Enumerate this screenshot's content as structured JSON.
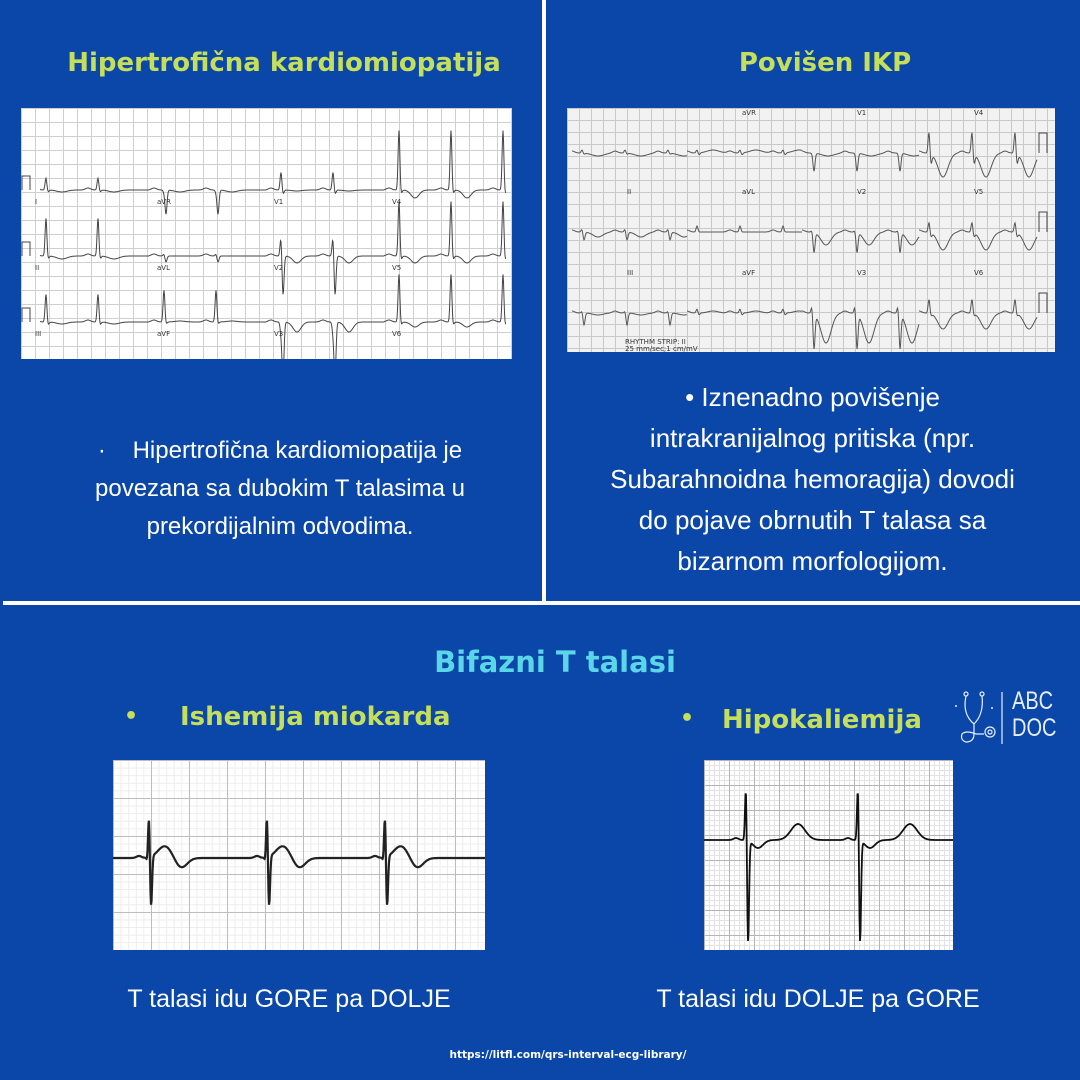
{
  "top_left": {
    "title": "Hipertrofična kardiomiopatija",
    "ecg_leads": [
      "I",
      "aVR",
      "V1",
      "V4",
      "II",
      "aVL",
      "V2",
      "V5",
      "III",
      "aVF",
      "V3",
      "V6"
    ],
    "bullet": "·",
    "text_lines": [
      "Hipertrofična kardiomiopatija je",
      "povezana sa dubokim T talasima u",
      "prekordijalnim odvodima."
    ]
  },
  "top_right": {
    "title": "Povišen IKP",
    "ecg_leads": [
      "",
      "aVR",
      "V1",
      "V4",
      "II",
      "aVL",
      "V2",
      "V5",
      "III",
      "aVF",
      "V3",
      "V6"
    ],
    "ecg_footer": [
      "RHYTHM STRIP: II",
      "25 mm/sec;1 cm/mV"
    ],
    "bullet": "•",
    "text_lines": [
      "Iznenadno povišenje",
      "intrakranijalnog pritiska (npr.",
      "Subarahnoidna hemoragija) dovodi",
      "do pojave obrnutih T talasa sa",
      "bizarnom morfologijom."
    ]
  },
  "bottom": {
    "title": "Bifazni T talasi",
    "left": {
      "bullet": "•",
      "label": "Ishemija miokarda",
      "caption": "T talasi idu GORE pa DOLJE"
    },
    "right": {
      "bullet": "•",
      "label": "Hipokaliemija",
      "caption": "T talasi idu DOLJE pa GORE"
    }
  },
  "logo": {
    "line1": "ABC",
    "line2": "DOC"
  },
  "source_url": "https://litfl.com/qrs-interval-ecg-library/",
  "colors": {
    "background": "#0a47a9",
    "title": "#c5df5a",
    "section_title": "#5ad6e8",
    "text": "#ffffff"
  }
}
